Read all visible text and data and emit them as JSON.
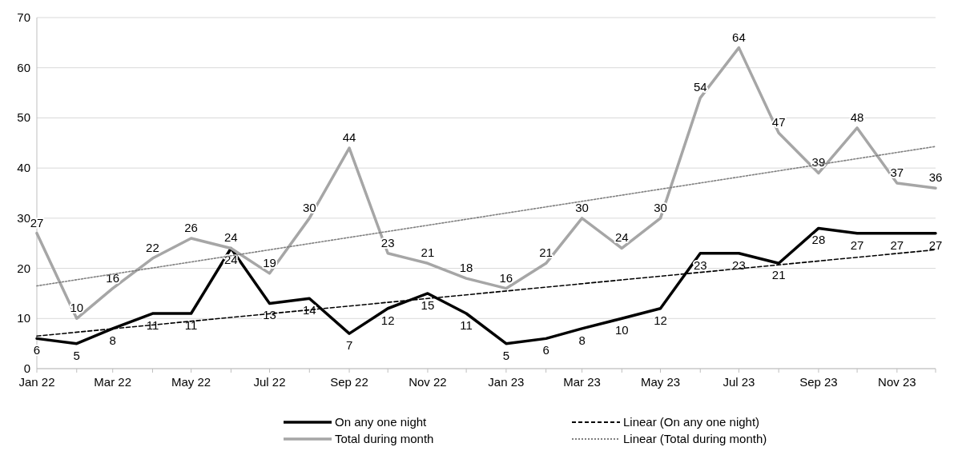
{
  "chart_data": {
    "type": "line",
    "x": [
      "2022-01",
      "2022-02",
      "2022-03",
      "2022-04",
      "2022-05",
      "2022-06",
      "2022-07",
      "2022-08",
      "2022-09",
      "2022-10",
      "2022-11",
      "2022-12",
      "2023-01",
      "2023-02",
      "2023-03",
      "2023-04",
      "2023-05",
      "2023-06",
      "2023-07",
      "2023-08",
      "2023-09",
      "2023-10",
      "2023-11",
      "2023-12"
    ],
    "series": [
      {
        "name": "On any one night",
        "color": "#000000",
        "line_style": "solid",
        "data_labels": true,
        "values": [
          6,
          5,
          8,
          11,
          11,
          24,
          13,
          14,
          7,
          12,
          15,
          11,
          5,
          6,
          8,
          10,
          12,
          23,
          23,
          21,
          28,
          27,
          27,
          27
        ]
      },
      {
        "name": "Linear (On any one night)",
        "color": "#000000",
        "line_style": "dashed",
        "x": [
          "2022-01",
          "2023-12"
        ],
        "values": [
          6.5,
          23.7
        ]
      },
      {
        "name": "Total during month",
        "color": "#a6a6a6",
        "line_style": "solid",
        "data_labels": true,
        "values": [
          27,
          10,
          16,
          22,
          26,
          24,
          19,
          30,
          44,
          23,
          21,
          18,
          16,
          21,
          30,
          24,
          30,
          54,
          64,
          47,
          39,
          48,
          37,
          36
        ]
      },
      {
        "name": "Linear (Total during month)",
        "color": "#808080",
        "line_style": "dotted",
        "x": [
          "2022-01",
          "2023-12"
        ],
        "values": [
          16.5,
          44.3
        ]
      }
    ],
    "xlim": [
      "2022-01",
      "2023-12"
    ],
    "xticks": [
      {
        "value": "2022-01",
        "label": "Jan 22"
      },
      {
        "value": "2022-03",
        "label": "Mar 22"
      },
      {
        "value": "2022-05",
        "label": "May 22"
      },
      {
        "value": "2022-07",
        "label": "Jul 22"
      },
      {
        "value": "2022-09",
        "label": "Sep 22"
      },
      {
        "value": "2022-11",
        "label": "Nov 22"
      },
      {
        "value": "2023-01",
        "label": "Jan 23"
      },
      {
        "value": "2023-03",
        "label": "Mar 23"
      },
      {
        "value": "2023-05",
        "label": "May 23"
      },
      {
        "value": "2023-07",
        "label": "Jul 23"
      },
      {
        "value": "2023-09",
        "label": "Sep 23"
      },
      {
        "value": "2023-11",
        "label": "Nov 23"
      }
    ],
    "ylim": [
      0,
      70
    ],
    "yticks": [
      0,
      10,
      20,
      30,
      40,
      50,
      60,
      70
    ],
    "grid": "y",
    "legend": "bottom",
    "marker": "none"
  }
}
